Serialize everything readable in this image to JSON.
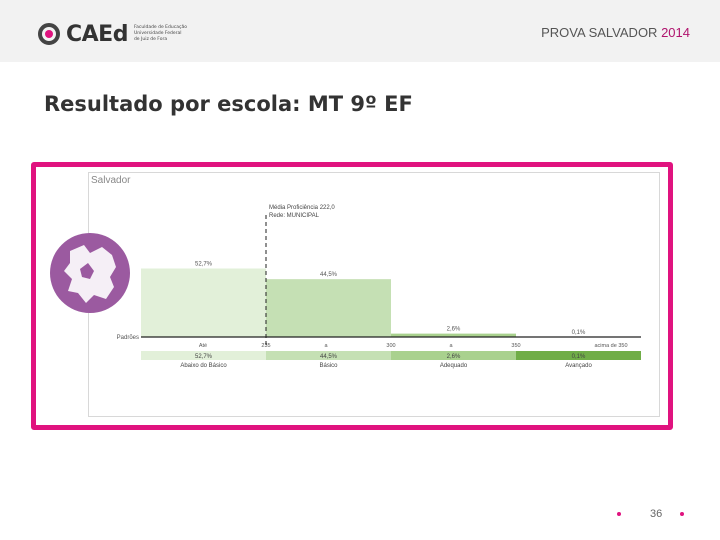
{
  "header": {
    "brand": "CAEd",
    "brand_sub": [
      "Faculdade de Educação",
      "Universidade Federal",
      "de Juiz de Fora"
    ],
    "event_title": "PROVA SALVADOR",
    "event_year": "2014"
  },
  "slide_title": "Resultado por escola: MT 9º EF",
  "colors": {
    "accent": "#e0137f",
    "map": "#9b5aa0",
    "level_1": "#e2f0d9",
    "level_2": "#c5e0b4",
    "level_3": "#a9d18e",
    "level_4": "#70ad47"
  },
  "chart": {
    "place": "Salvador",
    "mean_label": "Média Proficiência 222,0",
    "network_label": "Rede: MUNICIPAL",
    "axis_label": "Padrões",
    "ticks": [
      "Até",
      "235",
      "a",
      "300",
      "a",
      "350",
      "acima de 350"
    ],
    "chart_data": {
      "type": "bar",
      "title": "",
      "categories": [
        "Abaixo do Básico",
        "Básico",
        "Adequado",
        "Avançado"
      ],
      "series": [
        {
          "values": [
            52.7,
            44.5,
            2.6,
            0.1
          ]
        }
      ],
      "top_labels": [
        "52,7%",
        "44,5%",
        "2,6%",
        "0,1%"
      ],
      "table_labels": [
        "52,7%",
        "44,5%",
        "2,6%",
        "0,1%"
      ],
      "ylim": [
        0,
        60
      ],
      "mean_proficiency": 222.0
    }
  },
  "footer": {
    "page_number": "36"
  }
}
